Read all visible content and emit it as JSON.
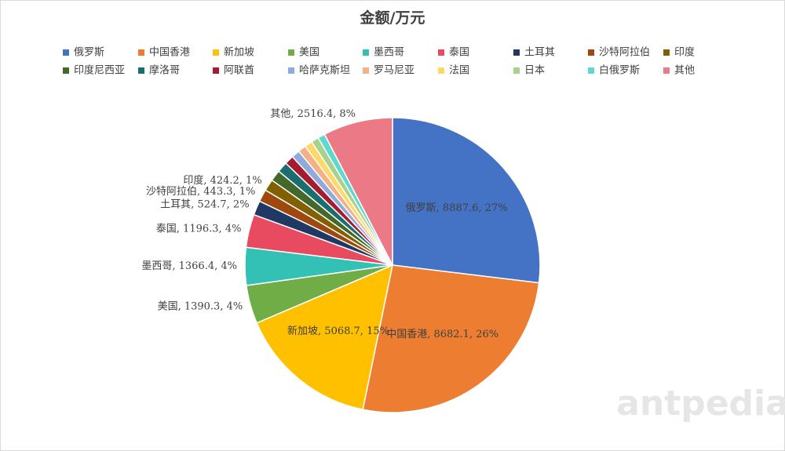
{
  "chart_data": {
    "type": "pie",
    "title": "金额/万元",
    "categories": [
      "俄罗斯",
      "中国香港",
      "新加坡",
      "美国",
      "墨西哥",
      "泰国",
      "土耳其",
      "沙特阿拉伯",
      "印度",
      "印度尼西亚",
      "摩洛哥",
      "阿联酋",
      "哈萨克斯坦",
      "罗马尼亚",
      "法国",
      "日本",
      "白俄罗斯",
      "其他"
    ],
    "values": [
      8887.6,
      8682.1,
      5068.7,
      1390.3,
      1366.4,
      1196.3,
      524.7,
      443.3,
      424.2,
      400,
      380,
      330,
      300,
      290,
      280,
      270,
      260,
      2516.4
    ],
    "value_labels": [
      "俄罗斯, 8887.6, 27%",
      "中国香港, 8682.1, 26%",
      "新加坡, 5068.7, 15%",
      "美国, 1390.3, 4%",
      "墨西哥, 1366.4, 4%",
      "泰国, 1196.3, 4%",
      "土耳其, 524.7, 2%",
      "沙特阿拉伯, 443.3, 1%",
      "印度, 424.2, 1%",
      null,
      null,
      null,
      null,
      null,
      null,
      null,
      null,
      "其他, 2516.4, 8%"
    ],
    "colors": [
      "#4472c4",
      "#ed7d31",
      "#ffc000",
      "#70ad47",
      "#33c0b5",
      "#e84a5f",
      "#1f3864",
      "#9e480e",
      "#806000",
      "#43682b",
      "#1a6e6e",
      "#a51c30",
      "#8faadc",
      "#f4b183",
      "#ffd966",
      "#a9d18e",
      "#5fd8d0",
      "#ec7a86"
    ],
    "legend": "top"
  },
  "watermark": "antpedia"
}
